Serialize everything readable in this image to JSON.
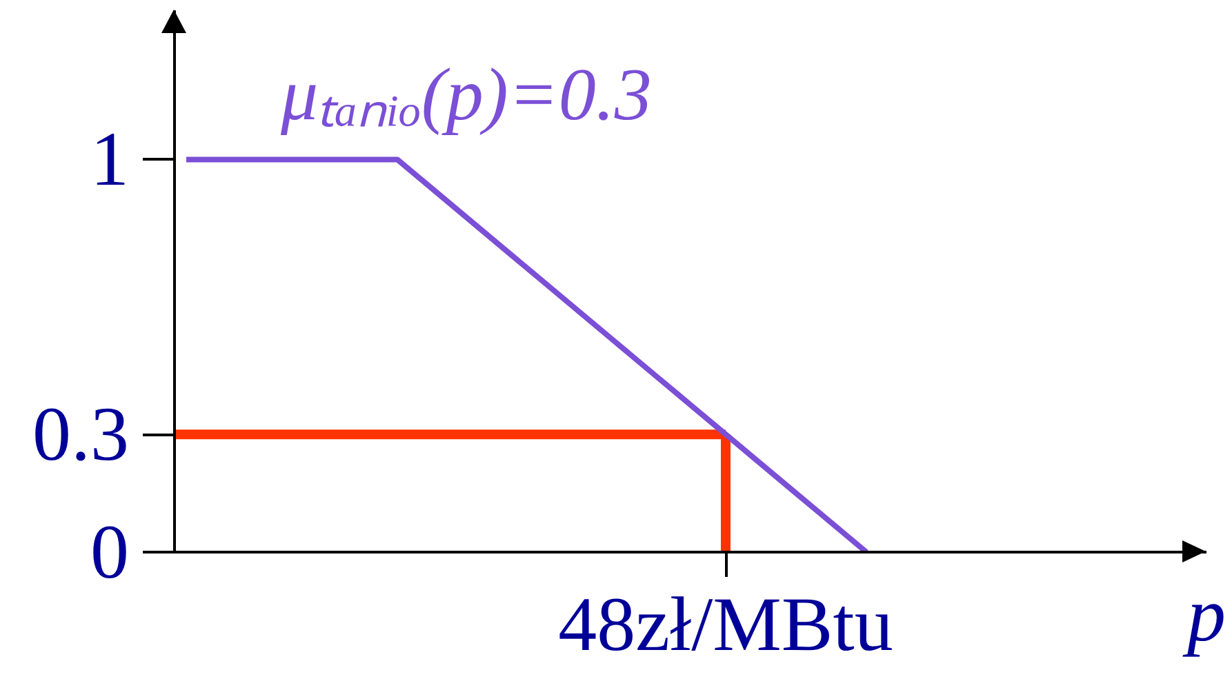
{
  "chart_data": {
    "type": "line",
    "title": "μₜₐₙᵢₒ(p)=0.3",
    "xlabel": "p",
    "categories": [
      null,
      null,
      null,
      null,
      null,
      null,
      null,
      null,
      null,
      null,
      null,
      null,
      null,
      null,
      null,
      null,
      null,
      null,
      null,
      null,
      null,
      null,
      null,
      "48zł/MBtu",
      null,
      null,
      null,
      null,
      null,
      null,
      null,
      null,
      null,
      null,
      null,
      null,
      null,
      null,
      null,
      null,
      null,
      null,
      null,
      null
    ],
    "ylim": [
      0,
      1.38
    ],
    "yticks": [
      0,
      0.3,
      1
    ],
    "series": [
      {
        "color": "#7b4fd6",
        "values": [
          1,
          1,
          1,
          1,
          1,
          1,
          1,
          1,
          1,
          1,
          0.95,
          0.9,
          0.85,
          0.8,
          0.75,
          0.7,
          0.65,
          0.6,
          0.55,
          0.5,
          0.45,
          0.4,
          0.35,
          0.3,
          0.25,
          0.2,
          0.15,
          0.1,
          0.05,
          0,
          null,
          null,
          null,
          null,
          null,
          null,
          null,
          null,
          null,
          null,
          null,
          null,
          null,
          null
        ]
      }
    ],
    "ref_lines": [
      {
        "axis": "y",
        "value": 0.3,
        "color": "#ff3300"
      },
      {
        "axis": "x",
        "value": "48zł/MBtu",
        "color": "#ff3300"
      }
    ]
  }
}
